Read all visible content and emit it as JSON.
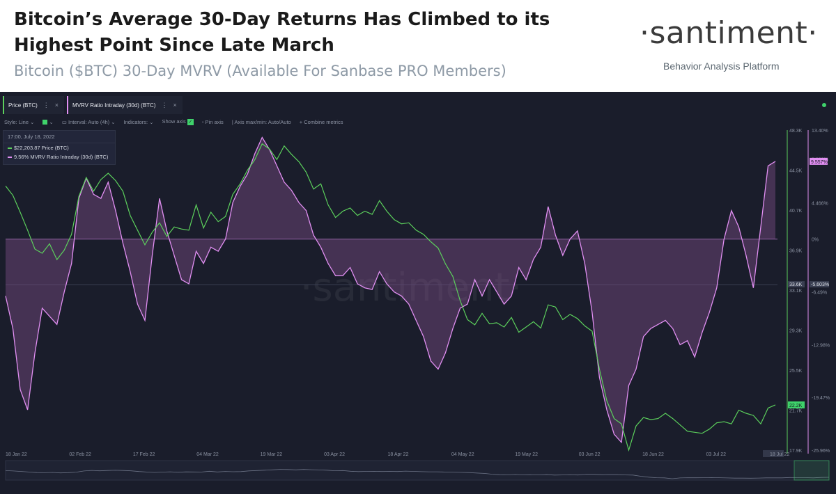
{
  "header": {
    "title_line1": "Bitcoin’s Average 30-Day Returns Has Climbed to its",
    "title_line2": "Highest Point Since Late March",
    "subtitle": "Bitcoin ($BTC) 30-Day MVRV (Available For Sanbase PRO Members)",
    "logo": "·santiment·",
    "tagline": "Behavior Analysis Platform"
  },
  "tabs": [
    {
      "label": "Price (BTC)",
      "color": "#5cd05c"
    },
    {
      "label": "MVRV Ratio Intraday (30d) (BTC)",
      "color": "#e18ff2"
    }
  ],
  "toolbar": {
    "style": "Style: Line",
    "interval": "Interval: Auto (4h)",
    "indicators": "Indicators:",
    "show_axis": "Show axis",
    "pin_axis": "Pin axis",
    "axis_minmax": "Axis max/min: Auto/Auto",
    "combine": "Combine metrics"
  },
  "tooltip": {
    "date": "17:00, July 18, 2022",
    "price": "$22,203.87 Price (BTC)",
    "mvrv": "9.56% MVRV Ratio Intraday (30d) (BTC)"
  },
  "watermark": "·santiment·",
  "chart_data": {
    "type": "line",
    "x_ticks": [
      "18 Jan 22",
      "02 Feb 22",
      "17 Feb 22",
      "04 Mar 22",
      "19 Mar 22",
      "03 Apr 22",
      "18 Apr 22",
      "04 May 22",
      "19 May 22",
      "03 Jun 22",
      "18 Jun 22",
      "03 Jul 22",
      "18 Jul 22"
    ],
    "price_axis": {
      "ticks": [
        "48.3K",
        "44.5K",
        "40.7K",
        "36.9K",
        "33.1K",
        "29.3K",
        "25.5K",
        "21.7K",
        "17.9K"
      ],
      "range": [
        17.9,
        48.3
      ],
      "current_label": "22.2K",
      "marker_label": "33.6K"
    },
    "mvrv_axis": {
      "ticks": [
        "13.40%",
        "9.832%",
        "4.466%",
        "0%",
        "-6.49%",
        "-12.98%",
        "-19.47%",
        "-25.96%"
      ],
      "current_label": "9.557%",
      "marker_label": "-5.603%",
      "zero_value": 0
    },
    "series": [
      {
        "name": "Price (BTC)",
        "color": "#5cd05c",
        "unit": "K USD",
        "values": [
          43.0,
          42.1,
          40.5,
          38.8,
          37.0,
          36.6,
          37.5,
          36.0,
          36.9,
          38.4,
          42.0,
          43.8,
          42.5,
          43.6,
          44.2,
          43.5,
          42.5,
          40.2,
          38.8,
          37.4,
          38.6,
          39.5,
          38.2,
          39.1,
          38.9,
          38.8,
          41.2,
          39.0,
          40.5,
          39.6,
          40.1,
          42.2,
          43.2,
          44.5,
          45.5,
          47.0,
          46.5,
          45.5,
          46.8,
          46.0,
          45.3,
          44.3,
          42.7,
          43.2,
          41.2,
          40.0,
          40.6,
          40.9,
          40.2,
          40.6,
          40.3,
          41.6,
          40.6,
          39.8,
          39.4,
          39.5,
          38.8,
          38.4,
          37.7,
          37.1,
          35.6,
          34.4,
          32.1,
          30.3,
          29.8,
          30.9,
          29.9,
          30.0,
          29.6,
          30.5,
          29.1,
          29.6,
          30.1,
          29.5,
          31.7,
          31.5,
          30.3,
          30.8,
          30.4,
          29.7,
          29.2,
          25.6,
          22.6,
          20.9,
          20.4,
          17.9,
          20.2,
          21.0,
          20.8,
          20.9,
          21.4,
          20.9,
          20.3,
          19.7,
          19.6,
          19.5,
          19.9,
          20.5,
          20.6,
          20.4,
          21.7,
          21.4,
          21.2,
          20.4,
          21.9,
          22.2
        ]
      },
      {
        "name": "MVRV Ratio Intraday (30d) (BTC)",
        "color": "#e18ff2",
        "unit": "%",
        "values": [
          -7.0,
          -11.0,
          -18.5,
          -21.0,
          -14.0,
          -8.5,
          -9.5,
          -10.5,
          -6.5,
          -3.0,
          5.0,
          7.5,
          5.5,
          5.0,
          7.0,
          3.5,
          -0.5,
          -4.0,
          -8.0,
          -10.0,
          -2.0,
          5.0,
          1.0,
          -2.0,
          -5.0,
          -5.5,
          -1.5,
          -3.0,
          -1.0,
          -1.5,
          0.0,
          4.5,
          6.5,
          8.0,
          10.5,
          12.5,
          11.0,
          9.0,
          7.0,
          6.0,
          4.5,
          3.5,
          0.5,
          -1.0,
          -3.0,
          -4.5,
          -4.5,
          -3.5,
          -5.5,
          -6.0,
          -6.2,
          -4.0,
          -5.5,
          -6.5,
          -7.0,
          -8.0,
          -10.0,
          -12.0,
          -15.0,
          -16.0,
          -14.0,
          -11.0,
          -8.5,
          -8.0,
          -5.0,
          -7.0,
          -5.0,
          -6.5,
          -8.0,
          -7.0,
          -3.5,
          -5.0,
          -2.5,
          -1.0,
          4.0,
          0.5,
          -2.0,
          0.0,
          1.0,
          -3.0,
          -9.0,
          -17.0,
          -21.0,
          -24.0,
          -25.0,
          -18.0,
          -16.0,
          -12.0,
          -11.0,
          -10.5,
          -10.0,
          -11.0,
          -13.0,
          -12.5,
          -14.5,
          -11.5,
          -9.0,
          -6.0,
          0.0,
          3.5,
          1.5,
          -2.0,
          -6.0,
          1.5,
          9.0,
          9.56
        ]
      }
    ]
  }
}
